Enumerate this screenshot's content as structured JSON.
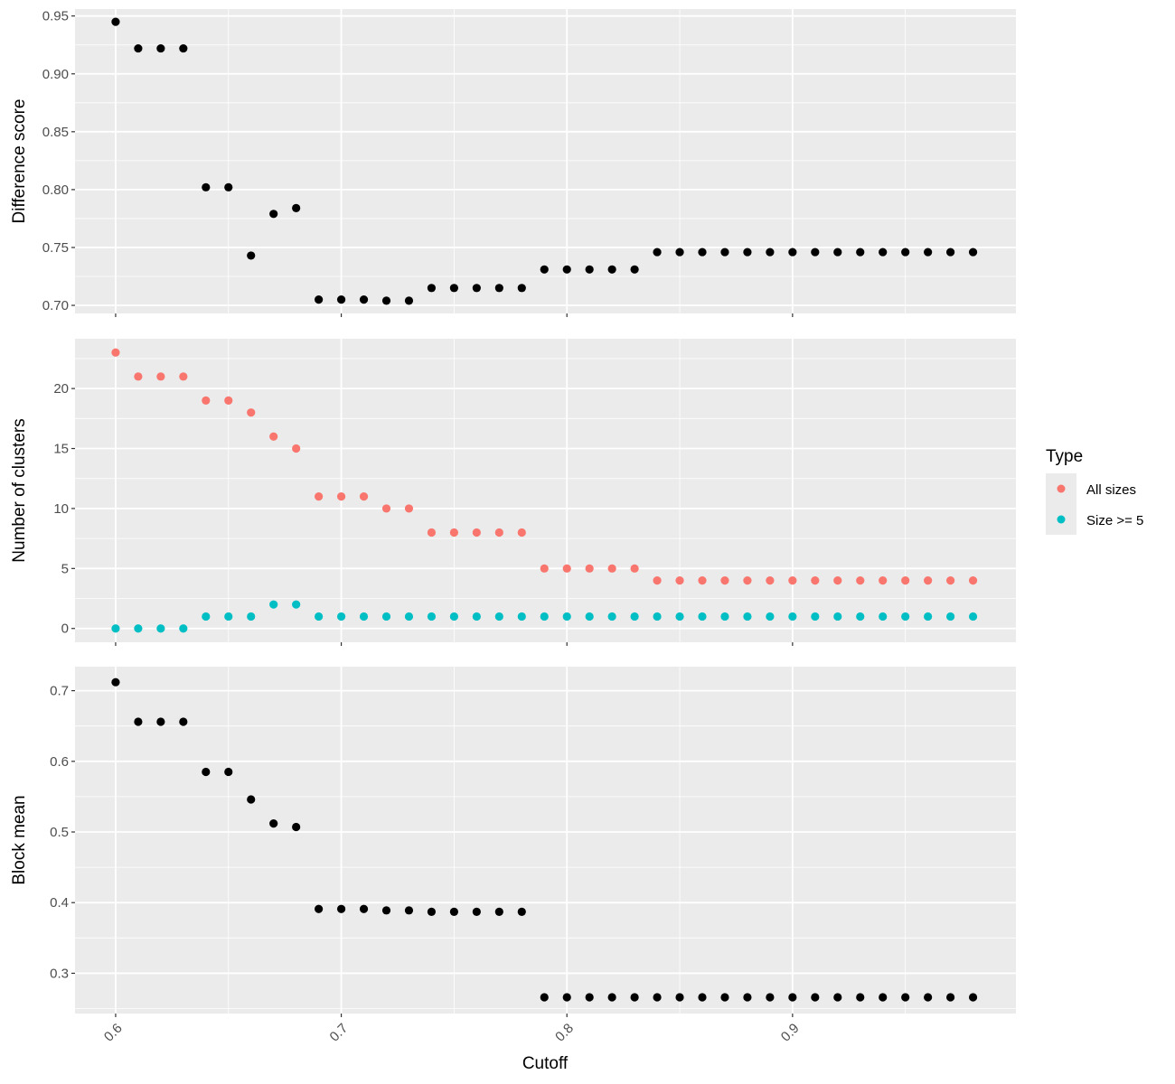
{
  "figure": {
    "xlabel": "Cutoff",
    "legend": {
      "title": "Type",
      "placement": "right",
      "items": [
        {
          "label": "All sizes",
          "color": "#F8766D"
        },
        {
          "label": "Size >= 5",
          "color": "#00BFC4"
        }
      ]
    },
    "colors": {
      "panel_bg": "#EBEBEB",
      "grid": "#FFFFFF",
      "point_default": "#000000"
    }
  },
  "chart_data": [
    {
      "type": "scatter",
      "ylabel": "Difference score",
      "xlim": [
        0.582,
        0.999
      ],
      "ylim": [
        0.693,
        0.956
      ],
      "x_ticks": [
        0.6,
        0.7,
        0.8,
        0.9
      ],
      "y_ticks": [
        0.7,
        0.75,
        0.8,
        0.85,
        0.9,
        0.95
      ],
      "y_tick_labels": [
        "0.70",
        "0.75",
        "0.80",
        "0.85",
        "0.90",
        "0.95"
      ],
      "grid": true,
      "series": [
        {
          "color": "#000000",
          "x": [
            0.6,
            0.61,
            0.62,
            0.63,
            0.64,
            0.65,
            0.66,
            0.67,
            0.68,
            0.69,
            0.7,
            0.71,
            0.72,
            0.73,
            0.74,
            0.75,
            0.76,
            0.77,
            0.78,
            0.79,
            0.8,
            0.81,
            0.82,
            0.83,
            0.84,
            0.85,
            0.86,
            0.87,
            0.88,
            0.89,
            0.9,
            0.91,
            0.92,
            0.93,
            0.94,
            0.95,
            0.96,
            0.97,
            0.98
          ],
          "y": [
            0.945,
            0.922,
            0.922,
            0.922,
            0.802,
            0.802,
            0.743,
            0.779,
            0.784,
            0.705,
            0.705,
            0.705,
            0.704,
            0.704,
            0.715,
            0.715,
            0.715,
            0.715,
            0.715,
            0.731,
            0.731,
            0.731,
            0.731,
            0.731,
            0.746,
            0.746,
            0.746,
            0.746,
            0.746,
            0.746,
            0.746,
            0.746,
            0.746,
            0.746,
            0.746,
            0.746,
            0.746,
            0.746,
            0.746
          ]
        }
      ]
    },
    {
      "type": "scatter",
      "ylabel": "Number of clusters",
      "xlim": [
        0.582,
        0.999
      ],
      "ylim": [
        -1.15,
        24.15
      ],
      "x_ticks": [
        0.6,
        0.7,
        0.8,
        0.9
      ],
      "y_ticks": [
        0,
        5,
        10,
        15,
        20
      ],
      "y_tick_labels": [
        "0",
        "5",
        "10",
        "15",
        "20"
      ],
      "grid": true,
      "series": [
        {
          "name": "All sizes",
          "color": "#F8766D",
          "x": [
            0.6,
            0.61,
            0.62,
            0.63,
            0.64,
            0.65,
            0.66,
            0.67,
            0.68,
            0.69,
            0.7,
            0.71,
            0.72,
            0.73,
            0.74,
            0.75,
            0.76,
            0.77,
            0.78,
            0.79,
            0.8,
            0.81,
            0.82,
            0.83,
            0.84,
            0.85,
            0.86,
            0.87,
            0.88,
            0.89,
            0.9,
            0.91,
            0.92,
            0.93,
            0.94,
            0.95,
            0.96,
            0.97,
            0.98
          ],
          "y": [
            23,
            21,
            21,
            21,
            19,
            19,
            18,
            16,
            15,
            11,
            11,
            11,
            10,
            10,
            8,
            8,
            8,
            8,
            8,
            5,
            5,
            5,
            5,
            5,
            4,
            4,
            4,
            4,
            4,
            4,
            4,
            4,
            4,
            4,
            4,
            4,
            4,
            4,
            4
          ]
        },
        {
          "name": "Size >= 5",
          "color": "#00BFC4",
          "x": [
            0.6,
            0.61,
            0.62,
            0.63,
            0.64,
            0.65,
            0.66,
            0.67,
            0.68,
            0.69,
            0.7,
            0.71,
            0.72,
            0.73,
            0.74,
            0.75,
            0.76,
            0.77,
            0.78,
            0.79,
            0.8,
            0.81,
            0.82,
            0.83,
            0.84,
            0.85,
            0.86,
            0.87,
            0.88,
            0.89,
            0.9,
            0.91,
            0.92,
            0.93,
            0.94,
            0.95,
            0.96,
            0.97,
            0.98
          ],
          "y": [
            0,
            0,
            0,
            0,
            1,
            1,
            1,
            2,
            2,
            1,
            1,
            1,
            1,
            1,
            1,
            1,
            1,
            1,
            1,
            1,
            1,
            1,
            1,
            1,
            1,
            1,
            1,
            1,
            1,
            1,
            1,
            1,
            1,
            1,
            1,
            1,
            1,
            1,
            1
          ]
        }
      ]
    },
    {
      "type": "scatter",
      "ylabel": "Block mean",
      "xlim": [
        0.582,
        0.999
      ],
      "ylim": [
        0.243,
        0.734
      ],
      "x_ticks": [
        0.6,
        0.7,
        0.8,
        0.9
      ],
      "x_tick_labels": [
        "0.6",
        "0.7",
        "0.8",
        "0.9"
      ],
      "y_ticks": [
        0.3,
        0.4,
        0.5,
        0.6,
        0.7
      ],
      "y_tick_labels": [
        "0.3",
        "0.4",
        "0.5",
        "0.6",
        "0.7"
      ],
      "grid": true,
      "series": [
        {
          "color": "#000000",
          "x": [
            0.6,
            0.61,
            0.62,
            0.63,
            0.64,
            0.65,
            0.66,
            0.67,
            0.68,
            0.69,
            0.7,
            0.71,
            0.72,
            0.73,
            0.74,
            0.75,
            0.76,
            0.77,
            0.78,
            0.79,
            0.8,
            0.81,
            0.82,
            0.83,
            0.84,
            0.85,
            0.86,
            0.87,
            0.88,
            0.89,
            0.9,
            0.91,
            0.92,
            0.93,
            0.94,
            0.95,
            0.96,
            0.97,
            0.98
          ],
          "y": [
            0.712,
            0.656,
            0.656,
            0.656,
            0.585,
            0.585,
            0.546,
            0.512,
            0.507,
            0.391,
            0.391,
            0.391,
            0.389,
            0.389,
            0.387,
            0.387,
            0.387,
            0.387,
            0.387,
            0.266,
            0.266,
            0.266,
            0.266,
            0.266,
            0.266,
            0.266,
            0.266,
            0.266,
            0.266,
            0.266,
            0.266,
            0.266,
            0.266,
            0.266,
            0.266,
            0.266,
            0.266,
            0.266,
            0.266
          ]
        }
      ]
    }
  ]
}
